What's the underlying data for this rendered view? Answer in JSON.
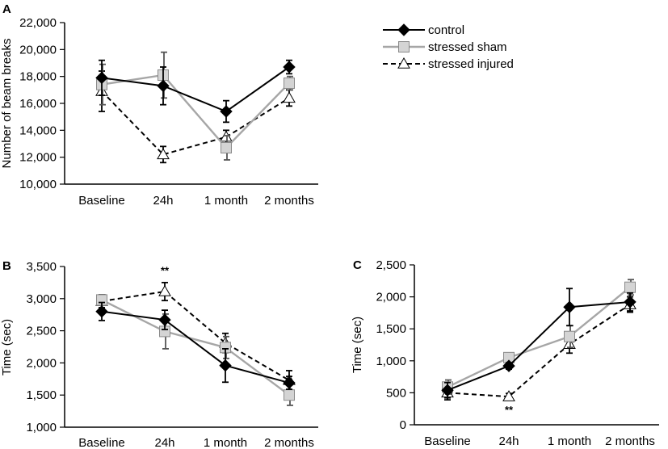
{
  "chart_data": [
    {
      "panel": "A",
      "type": "line",
      "ylabel": "Number of beam breaks",
      "xlabel": "",
      "categories": [
        "Baseline",
        "24h",
        "1 month",
        "2 months"
      ],
      "ylim": [
        10000,
        22000
      ],
      "yticks": [
        10000,
        12000,
        14000,
        16000,
        18000,
        20000,
        22000
      ],
      "ytick_labels": [
        "10,000",
        "12,000",
        "14,000",
        "16,000",
        "18,000",
        "20,000",
        "22,000"
      ],
      "series": [
        {
          "name": "control",
          "values": [
            17900,
            17300,
            15400,
            18700
          ],
          "errors": [
            1300,
            1400,
            800,
            500
          ]
        },
        {
          "name": "stressed sham",
          "values": [
            17400,
            18100,
            12700,
            17500
          ],
          "errors": [
            1500,
            1700,
            900,
            500
          ]
        },
        {
          "name": "stressed injured",
          "values": [
            16900,
            12200,
            13500,
            16400
          ],
          "errors": [
            1500,
            600,
            500,
            600
          ]
        }
      ],
      "annotations": []
    },
    {
      "panel": "B",
      "type": "line",
      "ylabel": "Time (sec)",
      "xlabel": "",
      "categories": [
        "Baseline",
        "24h",
        "1 month",
        "2 months"
      ],
      "ylim": [
        1000,
        3500
      ],
      "yticks": [
        1000,
        1500,
        2000,
        2500,
        3000,
        3500
      ],
      "ytick_labels": [
        "1,000",
        "1,500",
        "2,000",
        "2,500",
        "3,000",
        "3,500"
      ],
      "series": [
        {
          "name": "control",
          "values": [
            2800,
            2670,
            1960,
            1690
          ],
          "errors": [
            140,
            150,
            260,
            100
          ]
        },
        {
          "name": "stressed sham",
          "values": [
            2980,
            2490,
            2240,
            1500
          ],
          "errors": [
            80,
            270,
            170,
            160
          ]
        },
        {
          "name": "stressed injured",
          "values": [
            2960,
            3110,
            2310,
            1730
          ],
          "errors": [
            100,
            140,
            150,
            150
          ]
        }
      ],
      "annotations": [
        {
          "category": "24h",
          "text": "**",
          "value": 3430
        }
      ]
    },
    {
      "panel": "C",
      "type": "line",
      "ylabel": "Time (sec)",
      "xlabel": "",
      "categories": [
        "Baseline",
        "24h",
        "1 month",
        "2 months"
      ],
      "ylim": [
        0,
        2500
      ],
      "yticks": [
        0,
        500,
        1000,
        1500,
        2000,
        2500
      ],
      "ytick_labels": [
        "0",
        "500",
        "1,000",
        "1,500",
        "2,000",
        "2,500"
      ],
      "series": [
        {
          "name": "control",
          "values": [
            540,
            920,
            1840,
            1920
          ],
          "errors": [
            120,
            50,
            290,
            140
          ]
        },
        {
          "name": "stressed sham",
          "values": [
            590,
            1050,
            1380,
            2150
          ],
          "errors": [
            110,
            60,
            170,
            120
          ]
        },
        {
          "name": "stressed injured",
          "values": [
            500,
            440,
            1260,
            1880
          ],
          "errors": [
            110,
            50,
            140,
            120
          ]
        }
      ],
      "annotations": [
        {
          "category": "24h",
          "text": "**",
          "value": 230
        }
      ]
    }
  ],
  "legend": {
    "entries": [
      {
        "series": "control",
        "label": "control"
      },
      {
        "series": "stressed sham",
        "label": "stressed sham"
      },
      {
        "series": "stressed injured",
        "label": "stressed injured"
      }
    ]
  },
  "styles": {
    "control": {
      "color": "#000000",
      "marker": "diamond",
      "line": "solid",
      "fill": "#000000"
    },
    "stressed sham": {
      "color": "#a6a6a6",
      "marker": "square",
      "line": "solid",
      "fill": "#d4d4d4"
    },
    "stressed injured": {
      "color": "#000000",
      "marker": "triangle",
      "line": "dashed",
      "fill": "#ffffff"
    }
  }
}
